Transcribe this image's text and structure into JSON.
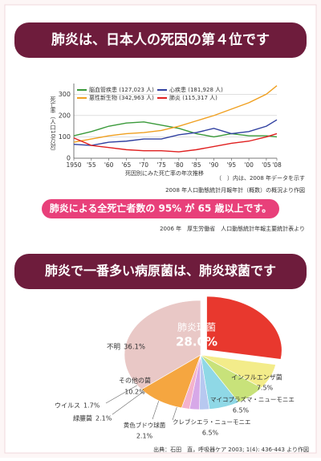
{
  "header1": "肺炎は、日本人の死因の第４位です",
  "note": "（　）内は、2008 年データを示す",
  "source1": "2008 年人口動態統計月報年計（概数）の概況より作図",
  "banner": "肺炎による全死亡者数の 95% が 65 歳以上です。",
  "source2": "2006 年　厚生労働省　人口動態統計年報主要統計表より",
  "header2": "肺炎で一番多い病原菌は、肺炎球菌です",
  "source3": "出典：石田　直，呼吸器ケア 2003; 1(4): 436-443 より作図",
  "chart_data": [
    {
      "type": "line",
      "y_label": "死亡率（人口10万対）",
      "x_label": "死因別にみた死亡率の年次推移",
      "x": [
        1950,
        1955,
        1960,
        1965,
        1970,
        1975,
        1980,
        1985,
        1990,
        1995,
        2000,
        2005,
        2008
      ],
      "series": [
        {
          "name": "脳血管疾患 (127,023 人)",
          "color": "#3a9a3a",
          "values": [
            105,
            125,
            150,
            165,
            170,
            155,
            140,
            115,
            100,
            115,
            105,
            105,
            100
          ]
        },
        {
          "name": "心疾患 (181,928 人)",
          "color": "#3040a0",
          "values": [
            65,
            60,
            75,
            80,
            90,
            90,
            110,
            120,
            140,
            115,
            125,
            150,
            180
          ]
        },
        {
          "name": "悪性新生物 (342,963 人)",
          "color": "#f0a020",
          "values": [
            75,
            90,
            105,
            115,
            120,
            130,
            150,
            175,
            200,
            230,
            260,
            300,
            340
          ]
        },
        {
          "name": "肺炎 (115,317 人)",
          "color": "#e02020",
          "values": [
            95,
            60,
            50,
            40,
            35,
            35,
            30,
            40,
            55,
            70,
            80,
            100,
            115
          ]
        }
      ],
      "xlim": [
        1950,
        2008
      ],
      "xticks": [
        1950,
        {
          "value": 1955,
          "label": "'55"
        },
        {
          "value": 1960,
          "label": "'60"
        },
        {
          "value": 1965,
          "label": "'65"
        },
        {
          "value": 1970,
          "label": "'70"
        },
        {
          "value": 1975,
          "label": "'75"
        },
        {
          "value": 1980,
          "label": "'80"
        },
        {
          "value": 1985,
          "label": "'85"
        },
        {
          "value": 1990,
          "label": "'90"
        },
        {
          "value": 1995,
          "label": "'95"
        },
        {
          "value": 2000,
          "label": "'00"
        },
        {
          "value": 2005,
          "label": "'05"
        },
        {
          "value": 2008,
          "label": "'08"
        }
      ],
      "ylim": [
        0,
        350
      ],
      "yticks": [
        0,
        100,
        200,
        300
      ],
      "grid": true
    },
    {
      "type": "pie",
      "categories": [
        "肺炎球菌",
        "インフルエンザ菌",
        "マイコプラズマ・ニューモニエ",
        "クレブシエラ・ニューモニエ",
        "黄色ブドウ球菌",
        "緑膿菌",
        "ウイルス",
        "その他の菌",
        "不明"
      ],
      "values": [
        28.0,
        7.5,
        6.5,
        6.5,
        2.1,
        2.1,
        1.7,
        10.2,
        36.1
      ],
      "value_labels": [
        "28.0%",
        "7.5%",
        "6.5%",
        "6.5%",
        "2.1%",
        "2.1%",
        "1.7%",
        "10.2%",
        "36.1%"
      ],
      "colors": [
        "#e8382e",
        "#f3ec8a",
        "#c8e27a",
        "#8fd8e6",
        "#b7c8f0",
        "#d7a8e8",
        "#f4b2cc",
        "#f5a640",
        "#e9c8c6"
      ]
    }
  ]
}
